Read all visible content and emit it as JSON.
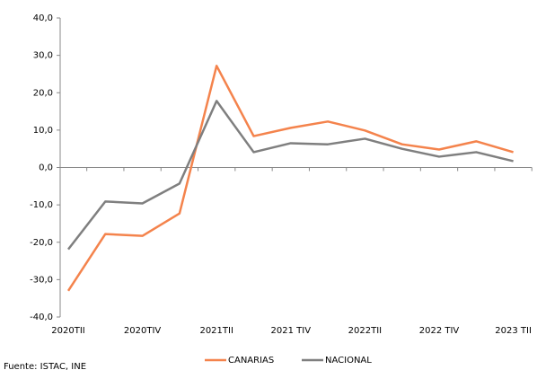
{
  "chart_data": {
    "type": "line",
    "categories": [
      "2020TII",
      null,
      "2020TIV",
      null,
      "2021TII",
      null,
      "2021 TIV",
      null,
      "2022TII",
      null,
      "2022 TIV",
      null,
      "2023 TII"
    ],
    "series": [
      {
        "name": "CANARIAS",
        "color": "#f4834c",
        "values": [
          -33.0,
          -17.8,
          -18.3,
          -12.3,
          27.2,
          8.4,
          10.6,
          12.3,
          9.9,
          6.2,
          4.8,
          7.0,
          4.1
        ]
      },
      {
        "name": "NACIONAL",
        "color": "#7f7f7f",
        "values": [
          -21.9,
          -9.1,
          -9.6,
          -4.3,
          17.8,
          4.1,
          6.5,
          6.2,
          7.7,
          5.0,
          2.9,
          4.1,
          1.7
        ]
      }
    ],
    "ylim": [
      -40,
      40
    ],
    "yticks": [
      {
        "value": -40,
        "label": "-40,0"
      },
      {
        "value": -30,
        "label": "-30,0"
      },
      {
        "value": -20,
        "label": "-20,0"
      },
      {
        "value": -10,
        "label": "-10,0"
      },
      {
        "value": 0,
        "label": "0,0"
      },
      {
        "value": 10,
        "label": "10,0"
      },
      {
        "value": 20,
        "label": "20,0"
      },
      {
        "value": 30,
        "label": "30,0"
      },
      {
        "value": 40,
        "label": "40,0"
      }
    ],
    "legend": "bottom",
    "source": "Fuente: ISTAC, INE"
  }
}
